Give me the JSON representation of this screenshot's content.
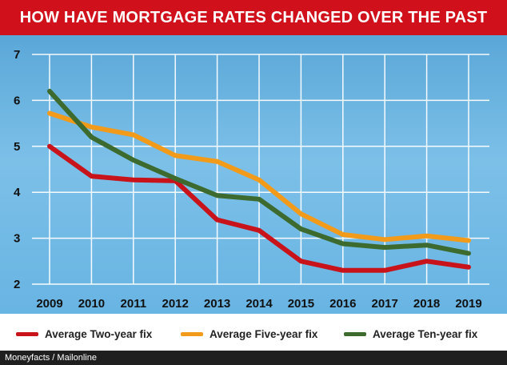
{
  "title": "HOW HAVE MORTGAGE RATES CHANGED OVER THE PAST DECADE",
  "footer": "Moneyfacts / Mailonline",
  "chart_data": {
    "type": "line",
    "title": "HOW HAVE MORTGAGE RATES CHANGED OVER THE PAST DECADE",
    "x": [
      "2009",
      "2010",
      "2011",
      "2012",
      "2013",
      "2014",
      "2015",
      "2016",
      "2017",
      "2018",
      "2019"
    ],
    "ylim": [
      2,
      7
    ],
    "yticks": [
      2,
      3,
      4,
      5,
      6,
      7
    ],
    "grid": true,
    "legend": "bottom",
    "series": [
      {
        "name": "Average Two-year fix",
        "color": "#c8131a",
        "values": [
          5.0,
          4.35,
          4.27,
          4.25,
          3.4,
          3.17,
          2.5,
          2.3,
          2.3,
          2.5,
          2.37
        ]
      },
      {
        "name": "Average Five-year fix",
        "color": "#f29a1a",
        "values": [
          5.72,
          5.42,
          5.25,
          4.8,
          4.67,
          4.27,
          3.53,
          3.08,
          2.97,
          3.05,
          2.95
        ]
      },
      {
        "name": "Average Ten-year fix",
        "color": "#3d6b2f",
        "values": [
          6.2,
          5.2,
          4.7,
          4.3,
          3.93,
          3.85,
          3.2,
          2.88,
          2.8,
          2.85,
          2.67
        ]
      }
    ]
  }
}
